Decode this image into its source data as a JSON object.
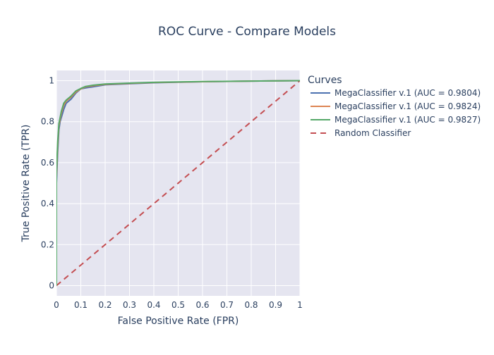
{
  "chart_data": {
    "type": "line",
    "title": "ROC Curve - Compare Models",
    "xlabel": "False Positive Rate (FPR)",
    "ylabel": "True Positive Rate (TPR)",
    "xlim": [
      0,
      1
    ],
    "ylim": [
      -0.05,
      1.05
    ],
    "x_ticks": [
      0,
      0.1,
      0.2,
      0.3,
      0.4,
      0.5,
      0.6,
      0.7,
      0.8,
      0.9,
      1
    ],
    "x_tick_labels": [
      "0",
      "0.1",
      "0.2",
      "0.3",
      "0.4",
      "0.5",
      "0.6",
      "0.7",
      "0.8",
      "0.9",
      "1"
    ],
    "y_ticks": [
      0,
      0.2,
      0.4,
      0.6,
      0.8,
      1
    ],
    "y_tick_labels": [
      "0",
      "0.2",
      "0.4",
      "0.6",
      "0.8",
      "1"
    ],
    "grid": true,
    "legend": {
      "title": "Curves",
      "placement": "right"
    },
    "series": [
      {
        "name": "MegaClassifier v.1 (AUC = 0.9804)",
        "color": "#4c72b0",
        "dash": "solid",
        "x": [
          0,
          0.0,
          0.005,
          0.01,
          0.015,
          0.02,
          0.03,
          0.04,
          0.05,
          0.06,
          0.08,
          0.1,
          0.12,
          0.15,
          0.2,
          0.3,
          0.4,
          0.6,
          0.8,
          1.0
        ],
        "y": [
          0,
          0.5,
          0.65,
          0.76,
          0.8,
          0.82,
          0.86,
          0.89,
          0.9,
          0.91,
          0.94,
          0.96,
          0.965,
          0.97,
          0.98,
          0.985,
          0.99,
          0.995,
          0.998,
          1.0
        ]
      },
      {
        "name": "MegaClassifier v.1 (AUC = 0.9824)",
        "color": "#dd8452",
        "dash": "solid",
        "x": [
          0,
          0.0,
          0.005,
          0.01,
          0.015,
          0.02,
          0.03,
          0.04,
          0.05,
          0.06,
          0.08,
          0.1,
          0.12,
          0.15,
          0.2,
          0.3,
          0.4,
          0.6,
          0.8,
          1.0
        ],
        "y": [
          0,
          0.53,
          0.68,
          0.78,
          0.81,
          0.84,
          0.88,
          0.9,
          0.91,
          0.92,
          0.945,
          0.96,
          0.97,
          0.975,
          0.982,
          0.987,
          0.991,
          0.995,
          0.998,
          1.0
        ]
      },
      {
        "name": "MegaClassifier v.1 (AUC = 0.9827)",
        "color": "#55a868",
        "dash": "solid",
        "x": [
          0,
          0.0,
          0.005,
          0.01,
          0.015,
          0.02,
          0.03,
          0.04,
          0.05,
          0.06,
          0.08,
          0.1,
          0.12,
          0.15,
          0.2,
          0.3,
          0.4,
          0.6,
          0.8,
          1.0
        ],
        "y": [
          0,
          0.55,
          0.7,
          0.79,
          0.82,
          0.85,
          0.89,
          0.905,
          0.915,
          0.925,
          0.95,
          0.962,
          0.972,
          0.978,
          0.984,
          0.988,
          0.992,
          0.996,
          0.998,
          1.0
        ]
      },
      {
        "name": "Random Classifier",
        "color": "#c44e52",
        "dash": "dash",
        "x": [
          0,
          1
        ],
        "y": [
          0,
          1
        ]
      }
    ]
  }
}
